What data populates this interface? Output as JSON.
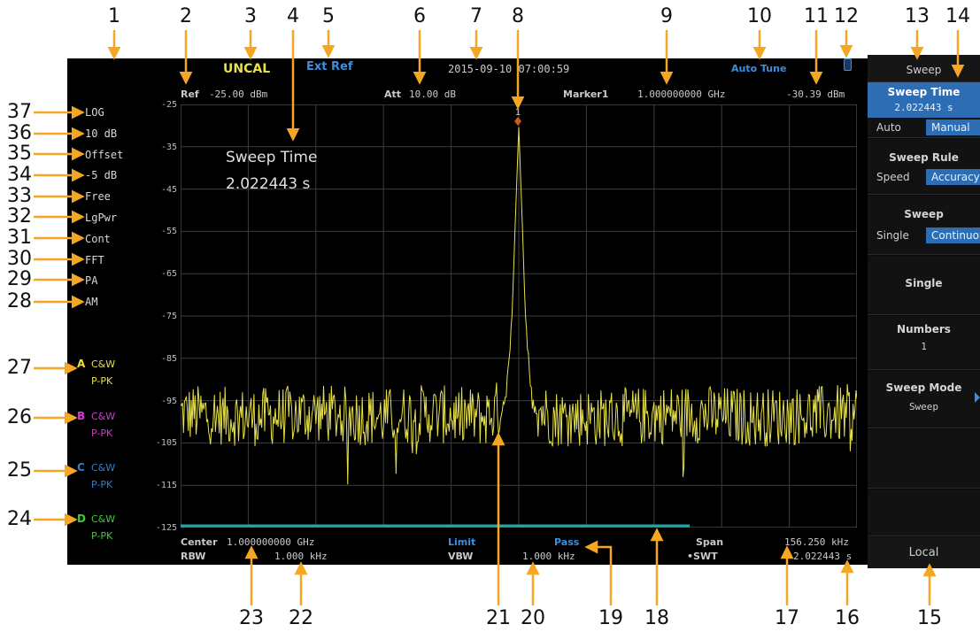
{
  "callouts": [
    "1",
    "2",
    "3",
    "4",
    "5",
    "6",
    "7",
    "8",
    "9",
    "10",
    "11",
    "12",
    "13",
    "14",
    "15",
    "16",
    "17",
    "18",
    "19",
    "20",
    "21",
    "22",
    "23",
    "24",
    "25",
    "26",
    "27",
    "28",
    "29",
    "30",
    "31",
    "32",
    "33",
    "34",
    "35",
    "36",
    "37"
  ],
  "status_bar": {
    "uncal": "UNCAL",
    "ext_ref": "Ext Ref",
    "datetime": "2015-09-10  07:00:59",
    "auto_tune": "Auto Tune"
  },
  "header_line": {
    "ref_label": "Ref",
    "ref_value": "-25.00 dBm",
    "att_label": "Att",
    "att_value": "10.00 dB",
    "marker_label": "Marker1",
    "marker_freq": "1.000000000  GHz",
    "marker_level": "-30.39 dBm"
  },
  "left_labels": [
    "LOG",
    "10 dB",
    "Offset",
    "-5 dB",
    "Free",
    "LgPwr",
    "Cont",
    "FFT",
    "PA",
    "AM"
  ],
  "traces": [
    {
      "letter": "A",
      "mode": "C&W",
      "detector": "P-PK",
      "color": "#e6e04a"
    },
    {
      "letter": "B",
      "mode": "C&W",
      "detector": "P-PK",
      "color": "#d23cd2"
    },
    {
      "letter": "C",
      "mode": "C&W",
      "detector": "P-PK",
      "color": "#2f7fd1"
    },
    {
      "letter": "D",
      "mode": "C&W",
      "detector": "P-PK",
      "color": "#45c83c"
    }
  ],
  "y_ticks": [
    "-25",
    "-35",
    "-45",
    "-55",
    "-65",
    "-75",
    "-85",
    "-95",
    "-105",
    "-115",
    "-125"
  ],
  "overlay": {
    "line1": "Sweep Time",
    "line2": "2.022443 s"
  },
  "marker": {
    "number": "1"
  },
  "footer": {
    "center_label": "Center",
    "center_value": "1.000000000  GHz",
    "rbw_label": "RBW",
    "rbw_value": "1.000  kHz",
    "limit_label": "Limit",
    "vbw_label": "VBW",
    "vbw_value": "1.000  kHz",
    "pass_label": "Pass",
    "span_label": "Span",
    "span_value": "156.250  kHz",
    "swt_label": "•SWT",
    "swt_value": "2.022443 s"
  },
  "softkeys": {
    "menu_title": "Sweep",
    "sweep_time": {
      "title": "Sweep Time",
      "value": "2.022443 s",
      "opt1": "Auto",
      "opt2": "Manual"
    },
    "sweep_rule": {
      "title": "Sweep Rule",
      "opt1": "Speed",
      "opt2": "Accuracy"
    },
    "sweep": {
      "title": "Sweep",
      "opt1": "Single",
      "opt2": "Continuous"
    },
    "single": {
      "title": "Single"
    },
    "numbers": {
      "title": "Numbers",
      "value": "1"
    },
    "sweep_mode": {
      "title": "Sweep Mode",
      "value": "Sweep"
    },
    "local": "Local"
  },
  "chart_data": {
    "type": "line",
    "ylim": [
      -125,
      -25
    ],
    "series": [
      {
        "x": [
          0.0,
          0.1,
          0.2,
          0.3,
          0.35,
          0.45,
          0.48,
          0.49,
          0.5,
          0.51,
          0.52,
          0.55,
          0.65,
          0.75,
          0.85,
          1.0
        ],
        "y": [
          -98,
          -99,
          -98,
          -99,
          -98,
          -99,
          -96,
          -75,
          -30.4,
          -75,
          -96,
          -99,
          -99,
          -98,
          -99,
          -98
        ]
      }
    ]
  }
}
